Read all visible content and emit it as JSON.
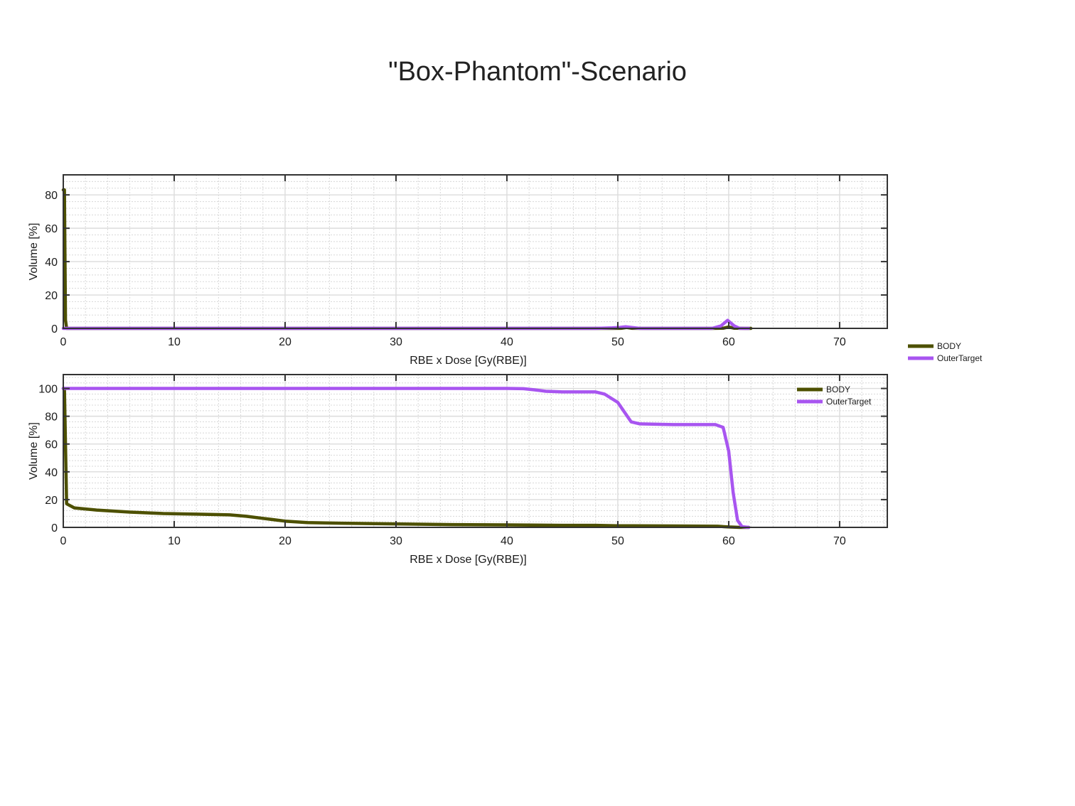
{
  "page": {
    "title": "\"Box-Phantom\"-Scenario"
  },
  "colors": {
    "body": "#4d5000",
    "target": "#a855f0",
    "axis": "#333333",
    "grid_major": "#dcdcdc",
    "grid_minor": "#d8d8d8"
  },
  "chart_data": [
    {
      "type": "line",
      "xlabel": "RBE x Dose [Gy(RBE)]",
      "ylabel": "Volume [%]",
      "xlim": [
        0,
        74.3
      ],
      "ylim": [
        0,
        92
      ],
      "xticks": [
        0,
        10,
        20,
        30,
        40,
        50,
        60,
        70
      ],
      "yticks": [
        0,
        20,
        40,
        60,
        80
      ],
      "grid": true,
      "legend": "outside-right",
      "series": [
        {
          "name": "BODY",
          "color": "#4d5000",
          "x": [
            0,
            0.1,
            0.2,
            0.3,
            10,
            20,
            30,
            40,
            48,
            49.5,
            50.3,
            50.8,
            51.3,
            52.5,
            58.5,
            59.5,
            60,
            60.5,
            61.5,
            62
          ],
          "y": [
            83,
            83,
            5,
            0,
            0,
            0,
            0,
            0,
            0,
            0,
            0.05,
            0.5,
            0.05,
            0,
            0,
            0.1,
            0.8,
            0.1,
            0,
            0
          ]
        },
        {
          "name": "OuterTarget",
          "color": "#a855f0",
          "x": [
            0,
            20,
            40,
            48,
            49.5,
            50.2,
            50.7,
            51.2,
            52,
            58.5,
            59.3,
            59.9,
            60.5,
            61,
            61.8
          ],
          "y": [
            0,
            0,
            0,
            0,
            0.3,
            0.6,
            1.0,
            0.6,
            0,
            0,
            1.5,
            4.8,
            1.5,
            0,
            0
          ]
        }
      ]
    },
    {
      "type": "line",
      "xlabel": "RBE x Dose [Gy(RBE)]",
      "ylabel": "Volume [%]",
      "xlim": [
        0,
        74.3
      ],
      "ylim": [
        0,
        110
      ],
      "xticks": [
        0,
        10,
        20,
        30,
        40,
        50,
        60,
        70
      ],
      "yticks": [
        0,
        20,
        40,
        60,
        80,
        100
      ],
      "grid": true,
      "legend": "top-right",
      "series": [
        {
          "name": "BODY",
          "color": "#4d5000",
          "x": [
            0,
            0.1,
            0.3,
            1,
            3,
            6,
            9,
            12,
            15,
            16.5,
            18,
            20,
            22,
            25,
            30,
            35,
            40,
            45,
            48,
            50,
            55,
            59,
            60,
            61,
            61.8
          ],
          "y": [
            100,
            100,
            17,
            14,
            12.5,
            11,
            10,
            9.5,
            9,
            8,
            6.5,
            4.5,
            3.5,
            3,
            2.5,
            2,
            1.8,
            1.5,
            1.5,
            1.2,
            1,
            0.8,
            0.3,
            0,
            0
          ]
        },
        {
          "name": "OuterTarget",
          "color": "#a855f0",
          "x": [
            0,
            10,
            20,
            30,
            40,
            41.5,
            42.5,
            43.5,
            45,
            48,
            48.8,
            50,
            50.6,
            51.2,
            52,
            55,
            58.8,
            59.5,
            60,
            60.4,
            60.8,
            61.2,
            61.8
          ],
          "y": [
            100,
            100,
            100,
            100,
            100,
            99.8,
            99,
            98,
            97.5,
            97.5,
            96,
            90,
            83,
            76,
            74.5,
            74,
            74,
            72,
            55,
            25,
            5,
            0.5,
            0
          ]
        }
      ]
    }
  ]
}
